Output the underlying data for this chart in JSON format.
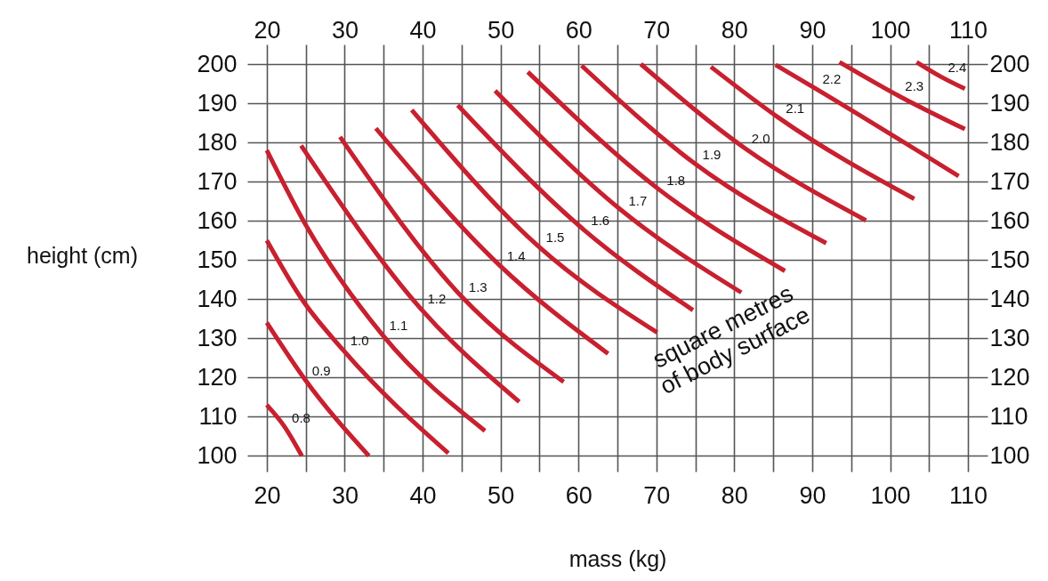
{
  "chart_data": {
    "type": "line",
    "xlabel": "mass (kg)",
    "ylabel": "height (cm)",
    "xlim": [
      17.5,
      112.5
    ],
    "ylim": [
      96,
      205
    ],
    "x2lim": [
      17.5,
      112.5
    ],
    "y2lim": [
      96,
      205
    ],
    "xticks": [
      20,
      {
        "value": 25,
        "label": null
      },
      30,
      {
        "value": 35,
        "label": null
      },
      40,
      {
        "value": 45,
        "label": null
      },
      50,
      {
        "value": 55,
        "label": null
      },
      60,
      {
        "value": 65,
        "label": null
      },
      70,
      {
        "value": 75,
        "label": null
      },
      80,
      {
        "value": 85,
        "label": null
      },
      90,
      {
        "value": 95,
        "label": null
      },
      100,
      {
        "value": 105,
        "label": null
      },
      110
    ],
    "x2ticks": [
      20,
      {
        "value": 25,
        "label": null
      },
      30,
      {
        "value": 35,
        "label": null
      },
      40,
      {
        "value": 45,
        "label": null
      },
      50,
      {
        "value": 55,
        "label": null
      },
      60,
      {
        "value": 65,
        "label": null
      },
      70,
      {
        "value": 75,
        "label": null
      },
      80,
      {
        "value": 85,
        "label": null
      },
      90,
      {
        "value": 95,
        "label": null
      },
      100,
      {
        "value": 105,
        "label": null
      },
      110
    ],
    "yticks": [
      100,
      110,
      120,
      130,
      140,
      150,
      160,
      170,
      180,
      190,
      200
    ],
    "y2ticks": [
      100,
      110,
      120,
      130,
      140,
      150,
      160,
      170,
      180,
      190,
      200
    ],
    "grid": true,
    "marker": "none",
    "line_style": "solid",
    "annotations": [
      "square metres\nof body surface"
    ],
    "series": [
      {
        "name": "0.8",
        "color": "#c8202f",
        "x": [
          20,
          22.3,
          24.5
        ],
        "values": [
          113,
          107.4,
          100
        ]
      },
      {
        "name": "0.9",
        "color": "#c8202f",
        "x": [
          20,
          24.9,
          33.1
        ],
        "values": [
          134,
          119.5,
          100
        ]
      },
      {
        "name": "1.0",
        "color": "#c8202f",
        "x": [
          20,
          24.5,
          29.8,
          43.3
        ],
        "values": [
          155,
          140,
          127,
          100.7
        ]
      },
      {
        "name": "1.1",
        "color": "#c8202f",
        "x": [
          20,
          24.7,
          34.8,
          48
        ],
        "values": [
          178,
          160,
          131,
          106.4
        ]
      },
      {
        "name": "1.2",
        "color": "#c8202f",
        "x": [
          24.4,
          39.7,
          52.4
        ],
        "values": [
          179.2,
          137.7,
          113.8
        ]
      },
      {
        "name": "1.3",
        "color": "#c8202f",
        "x": [
          29.4,
          45,
          58.1
        ],
        "values": [
          181.4,
          140.7,
          118.9
        ]
      },
      {
        "name": "1.4",
        "color": "#c8202f",
        "x": [
          34,
          49.9,
          63.8
        ],
        "values": [
          183.6,
          148.6,
          126.1
        ]
      },
      {
        "name": "1.5",
        "color": "#c8202f",
        "x": [
          38.6,
          54.9,
          70.1
        ],
        "values": [
          188.3,
          153.4,
          131.5
        ]
      },
      {
        "name": "1.6",
        "color": "#c8202f",
        "x": [
          44.5,
          60.7,
          74.7
        ],
        "values": [
          189.5,
          157.7,
          137.2
        ]
      },
      {
        "name": "1.7",
        "color": "#c8202f",
        "x": [
          49.3,
          65.5,
          80.9
        ],
        "values": [
          193.2,
          162.7,
          141.7
        ]
      },
      {
        "name": "1.8",
        "color": "#c8202f",
        "x": [
          53.5,
          70.4,
          86.5
        ],
        "values": [
          198,
          167.9,
          147.2
        ]
      },
      {
        "name": "1.9",
        "color": "#c8202f",
        "x": [
          60.4,
          75,
          91.8
        ],
        "values": [
          199.6,
          174.5,
          154.3
        ]
      },
      {
        "name": "2.0",
        "color": "#c8202f",
        "x": [
          68,
          81.3,
          96.9
        ],
        "values": [
          200,
          178.6,
          160.1
        ]
      },
      {
        "name": "2.1",
        "color": "#c8202f",
        "x": [
          77,
          85.7,
          103.1
        ],
        "values": [
          199.3,
          186.3,
          165.6
        ]
      },
      {
        "name": "2.2",
        "color": "#c8202f",
        "x": [
          85.3,
          90.4,
          108.8
        ],
        "values": [
          199.8,
          193.8,
          171.4
        ]
      },
      {
        "name": "2.3",
        "color": "#c8202f",
        "x": [
          93.5,
          101,
          109.6
        ],
        "values": [
          200.5,
          192,
          183.4
        ]
      },
      {
        "name": "2.4",
        "color": "#c8202f",
        "x": [
          103.4,
          106.5,
          109.6
        ],
        "values": [
          200.5,
          196.8,
          193.7
        ]
      }
    ]
  }
}
